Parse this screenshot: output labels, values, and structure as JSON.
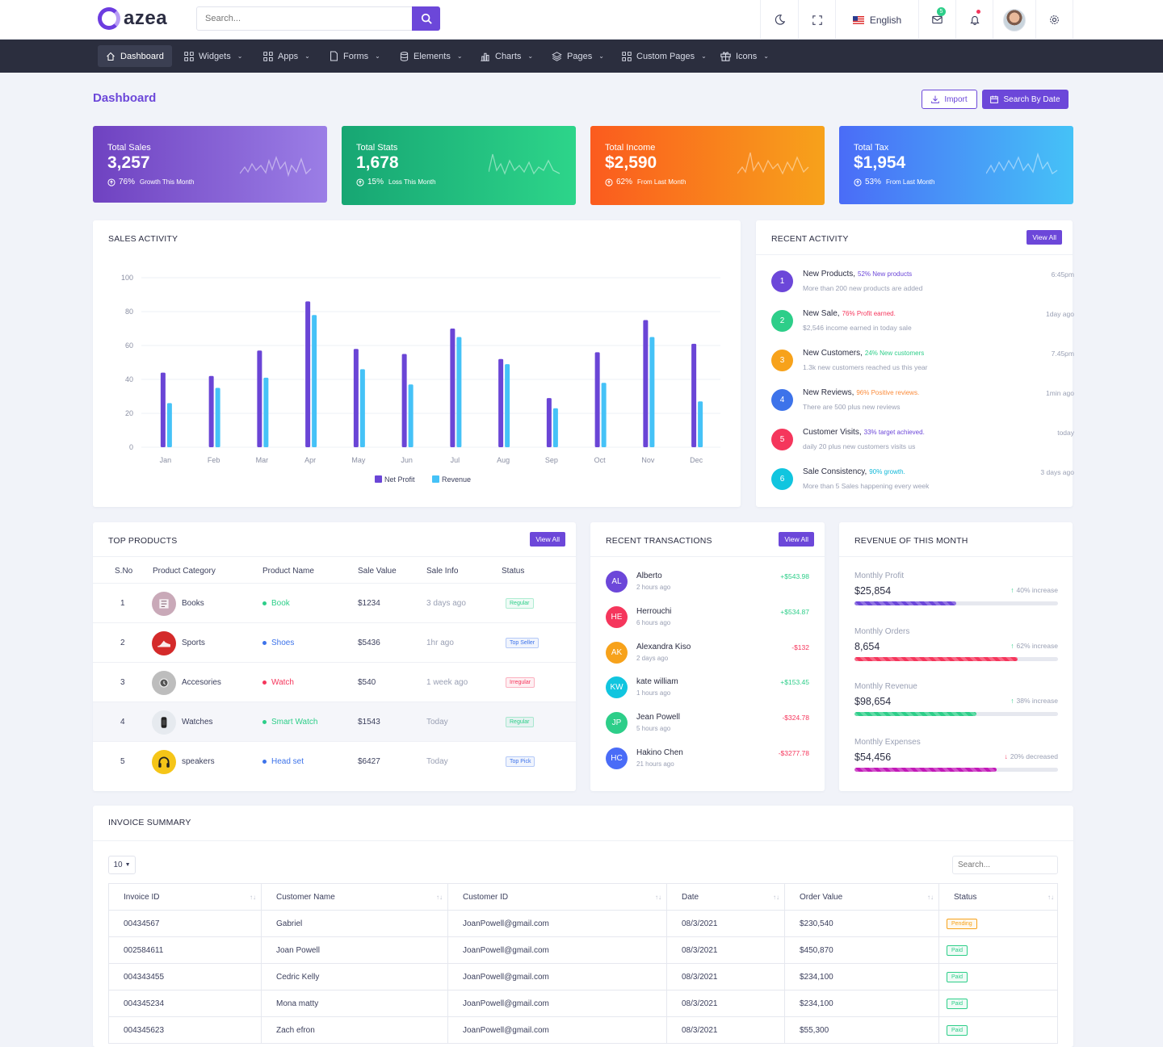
{
  "header": {
    "logo": "azea",
    "search_placeholder": "Search...",
    "language": "English",
    "mail_badge": "5"
  },
  "nav": [
    {
      "label": "Dashboard",
      "icon": "home-icon"
    },
    {
      "label": "Widgets",
      "icon": "grid-icon"
    },
    {
      "label": "Apps",
      "icon": "apps-icon"
    },
    {
      "label": "Forms",
      "icon": "file-icon"
    },
    {
      "label": "Elements",
      "icon": "database-icon"
    },
    {
      "label": "Charts",
      "icon": "bar-chart-icon"
    },
    {
      "label": "Pages",
      "icon": "layers-icon"
    },
    {
      "label": "Custom Pages",
      "icon": "grid-alt-icon"
    },
    {
      "label": "Icons",
      "icon": "gift-icon"
    }
  ],
  "page": {
    "title": "Dashboard",
    "import_label": "Import",
    "search_by_date_label": "Search By Date"
  },
  "stats": [
    {
      "label": "Total Sales",
      "value": "3,257",
      "pct": "76%",
      "note": "Growth This Month",
      "color_from": "#6f42c1",
      "color_to": "#9b7ee6"
    },
    {
      "label": "Total Stats",
      "value": "1,678",
      "pct": "15%",
      "note": "Loss This Month",
      "color_from": "#17a673",
      "color_to": "#2dd58a"
    },
    {
      "label": "Total Income",
      "value": "$2,590",
      "pct": "62%",
      "note": "From Last Month",
      "color_from": "#fb5b1e",
      "color_to": "#f7a21b"
    },
    {
      "label": "Total Tax",
      "value": "$1,954",
      "pct": "53%",
      "note": "From Last Month",
      "color_from": "#4a6cf7",
      "color_to": "#45c2f7"
    }
  ],
  "sales_activity": {
    "title": "SALES ACTIVITY"
  },
  "chart_data": {
    "type": "bar",
    "title": "SALES ACTIVITY",
    "categories": [
      "Jan",
      "Feb",
      "Mar",
      "Apr",
      "May",
      "Jun",
      "Jul",
      "Aug",
      "Sep",
      "Oct",
      "Nov",
      "Dec"
    ],
    "series": [
      {
        "name": "Net Profit",
        "color": "#6a45d6",
        "values": [
          44,
          42,
          57,
          86,
          58,
          55,
          70,
          52,
          29,
          56,
          75,
          61
        ]
      },
      {
        "name": "Revenue",
        "color": "#45c2f7",
        "values": [
          26,
          35,
          41,
          78,
          46,
          37,
          65,
          49,
          23,
          38,
          65,
          27
        ]
      }
    ],
    "yticks": [
      0,
      20,
      40,
      60,
      80,
      100
    ],
    "ylim": [
      0,
      100
    ],
    "legend": "bottom"
  },
  "recent_activity": {
    "title": "RECENT ACTIVITY",
    "view_all": "View All",
    "items": [
      {
        "num": "1",
        "title": "New Products,",
        "tag": "52% New products",
        "tag_color": "#6c47d9",
        "desc": "More than 200 new products are added",
        "time": "6:45pm",
        "color": "#6c47d9"
      },
      {
        "num": "2",
        "title": "New Sale,",
        "tag": "76% Profit earned.",
        "tag_color": "#f5365c",
        "desc": "$2,546 income earned in today sale",
        "time": "1day ago",
        "color": "#2dce89"
      },
      {
        "num": "3",
        "title": "New Customers,",
        "tag": "24% New customers",
        "tag_color": "#2dce89",
        "desc": "1.3k new customers reached us this year",
        "time": "7.45pm",
        "color": "#f7a21b"
      },
      {
        "num": "4",
        "title": "New Reviews,",
        "tag": "96% Positive reviews.",
        "tag_color": "#fb8c3c",
        "desc": "There are 500 plus new reviews",
        "time": "1min ago",
        "color": "#3d73ea"
      },
      {
        "num": "5",
        "title": "Customer Visits,",
        "tag": "33% target achieved.",
        "tag_color": "#6c47d9",
        "desc": "daily 20 plus new customers visits us",
        "time": "today",
        "color": "#f5365c"
      },
      {
        "num": "6",
        "title": "Sale Consistency,",
        "tag": "90% growth.",
        "tag_color": "#11b8d8",
        "desc": "More than 5 Sales happening every week",
        "time": "3 days ago",
        "color": "#11c5df"
      }
    ]
  },
  "top_products": {
    "title": "TOP PRODUCTS",
    "view_all": "View All",
    "columns": [
      "S.No",
      "Product Category",
      "Product Name",
      "Sale Value",
      "Sale Info",
      "Status"
    ],
    "rows": [
      {
        "sno": "1",
        "category": "Books",
        "name": "Book",
        "dot": "#2dce89",
        "name_color": "#2dce89",
        "value": "$1234",
        "info": "3 days ago",
        "status": "Regular",
        "status_color": "#2dce89",
        "icon": "book-icon",
        "img_bg": "#c9a9b8"
      },
      {
        "sno": "2",
        "category": "Sports",
        "name": "Shoes",
        "dot": "#3d73ea",
        "name_color": "#3d73ea",
        "value": "$5436",
        "info": "1hr ago",
        "status": "Top Seller",
        "status_color": "#3d73ea",
        "icon": "shoe-icon",
        "img_bg": "#d42a2a"
      },
      {
        "sno": "3",
        "category": "Accesories",
        "name": "Watch",
        "dot": "#f5365c",
        "name_color": "#f5365c",
        "value": "$540",
        "info": "1 week ago",
        "status": "Irregular",
        "status_color": "#f5365c",
        "icon": "watch-icon",
        "img_bg": "#bdbdbd"
      },
      {
        "sno": "4",
        "category": "Watches",
        "name": "Smart Watch",
        "dot": "#2dce89",
        "name_color": "#2dce89",
        "value": "$1543",
        "info": "Today",
        "status": "Regular",
        "status_color": "#2dce89",
        "icon": "smart-watch-icon",
        "img_bg": "#e6eaef"
      },
      {
        "sno": "5",
        "category": "speakers",
        "name": "Head set",
        "dot": "#3d73ea",
        "name_color": "#3d73ea",
        "value": "$6427",
        "info": "Today",
        "status": "Top Pick",
        "status_color": "#3d73ea",
        "icon": "headset-icon",
        "img_bg": "#f5c518"
      }
    ]
  },
  "recent_transactions": {
    "title": "RECENT TRANSACTIONS",
    "view_all": "View All",
    "items": [
      {
        "initials": "AL",
        "name": "Alberto",
        "time": "2 hours ago",
        "amount": "+$543.98",
        "color": "#6c47d9",
        "amount_color": "#2dce89"
      },
      {
        "initials": "HE",
        "name": "Herrouchi",
        "time": "6 hours ago",
        "amount": "+$534.87",
        "color": "#f5365c",
        "amount_color": "#2dce89"
      },
      {
        "initials": "AK",
        "name": "Alexandra Kiso",
        "time": "2 days ago",
        "amount": "-$132",
        "color": "#f7a21b",
        "amount_color": "#f5365c"
      },
      {
        "initials": "KW",
        "name": "kate william",
        "time": "1 hours ago",
        "amount": "+$153.45",
        "color": "#11c5df",
        "amount_color": "#2dce89"
      },
      {
        "initials": "JP",
        "name": "Jean Powell",
        "time": "5 hours ago",
        "amount": "-$324.78",
        "color": "#2dce89",
        "amount_color": "#f5365c"
      },
      {
        "initials": "HC",
        "name": "Hakino Chen",
        "time": "21 hours ago",
        "amount": "-$3277.78",
        "color": "#4a6cf7",
        "amount_color": "#f5365c"
      }
    ]
  },
  "revenue_month": {
    "title": "REVENUE OF THIS MONTH",
    "items": [
      {
        "label": "Monthly Profit",
        "value": "$25,854",
        "change": "40% increase",
        "direction": "up",
        "progress": 0.5,
        "color": "#6c47d9"
      },
      {
        "label": "Monthly Orders",
        "value": "8,654",
        "change": "62% increase",
        "direction": "up",
        "progress": 0.8,
        "color": "#f5365c"
      },
      {
        "label": "Monthly Revenue",
        "value": "$98,654",
        "change": "38% increase",
        "direction": "up",
        "progress": 0.6,
        "color": "#2dce89"
      },
      {
        "label": "Monthly Expenses",
        "value": "$54,456",
        "change": "20% decreased",
        "direction": "down",
        "progress": 0.7,
        "color": "#c219b8"
      }
    ]
  },
  "invoice": {
    "title": "INVOICE SUMMARY",
    "page_size": "10",
    "search_placeholder": "Search...",
    "columns": [
      "Invoice ID",
      "Customer Name",
      "Customer ID",
      "Date",
      "Order Value",
      "Status"
    ],
    "rows": [
      {
        "id": "00434567",
        "name": "Gabriel",
        "cid": "JoanPowell@gmail.com",
        "date": "08/3/2021",
        "value": "$230,540",
        "status": "Pending",
        "status_color": "#f7a21b"
      },
      {
        "id": "002584611",
        "name": "Joan Powell",
        "cid": "JoanPowell@gmail.com",
        "date": "08/3/2021",
        "value": "$450,870",
        "status": "Paid",
        "status_color": "#2dce89"
      },
      {
        "id": "004343455",
        "name": "Cedric Kelly",
        "cid": "JoanPowell@gmail.com",
        "date": "08/3/2021",
        "value": "$234,100",
        "status": "Paid",
        "status_color": "#2dce89"
      },
      {
        "id": "004345234",
        "name": "Mona matty",
        "cid": "JoanPowell@gmail.com",
        "date": "08/3/2021",
        "value": "$234,100",
        "status": "Paid",
        "status_color": "#2dce89"
      },
      {
        "id": "004345623",
        "name": "Zach efron",
        "cid": "JoanPowell@gmail.com",
        "date": "08/3/2021",
        "value": "$55,300",
        "status": "Paid",
        "status_color": "#2dce89"
      }
    ]
  }
}
